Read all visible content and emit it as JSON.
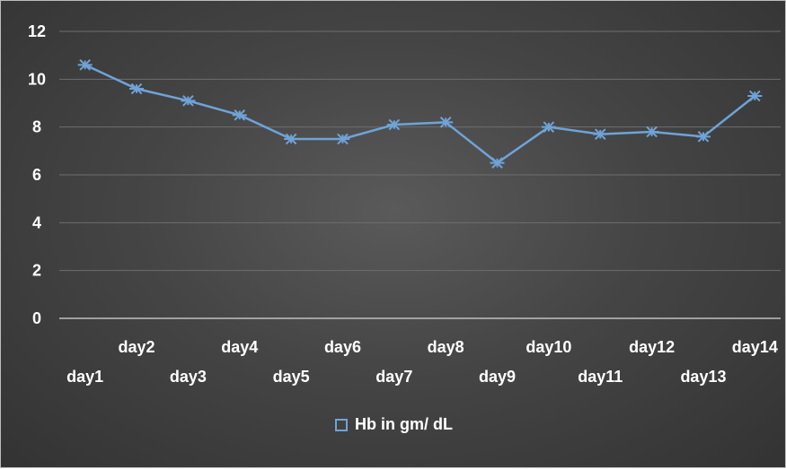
{
  "chart_data": {
    "type": "line",
    "categories": [
      "day1",
      "day2",
      "day3",
      "day4",
      "day5",
      "day6",
      "day7",
      "day8",
      "day9",
      "day10",
      "day11",
      "day12",
      "day13",
      "day14"
    ],
    "series": [
      {
        "name": "Hb in gm/ dL",
        "values": [
          10.6,
          9.6,
          9.1,
          8.5,
          7.5,
          7.5,
          8.1,
          8.2,
          6.5,
          8.0,
          7.7,
          7.8,
          7.6,
          9.3
        ]
      }
    ],
    "ylim": [
      0,
      12
    ],
    "yticks": [
      "0",
      "2",
      "4",
      "6",
      "8",
      "10",
      "12"
    ],
    "grid": true,
    "legend_position": "bottom",
    "colors": {
      "line": "#6fa3d8",
      "grid": "#6e6e6e",
      "axis": "#bfbfbf",
      "text": "#ffffff"
    }
  }
}
